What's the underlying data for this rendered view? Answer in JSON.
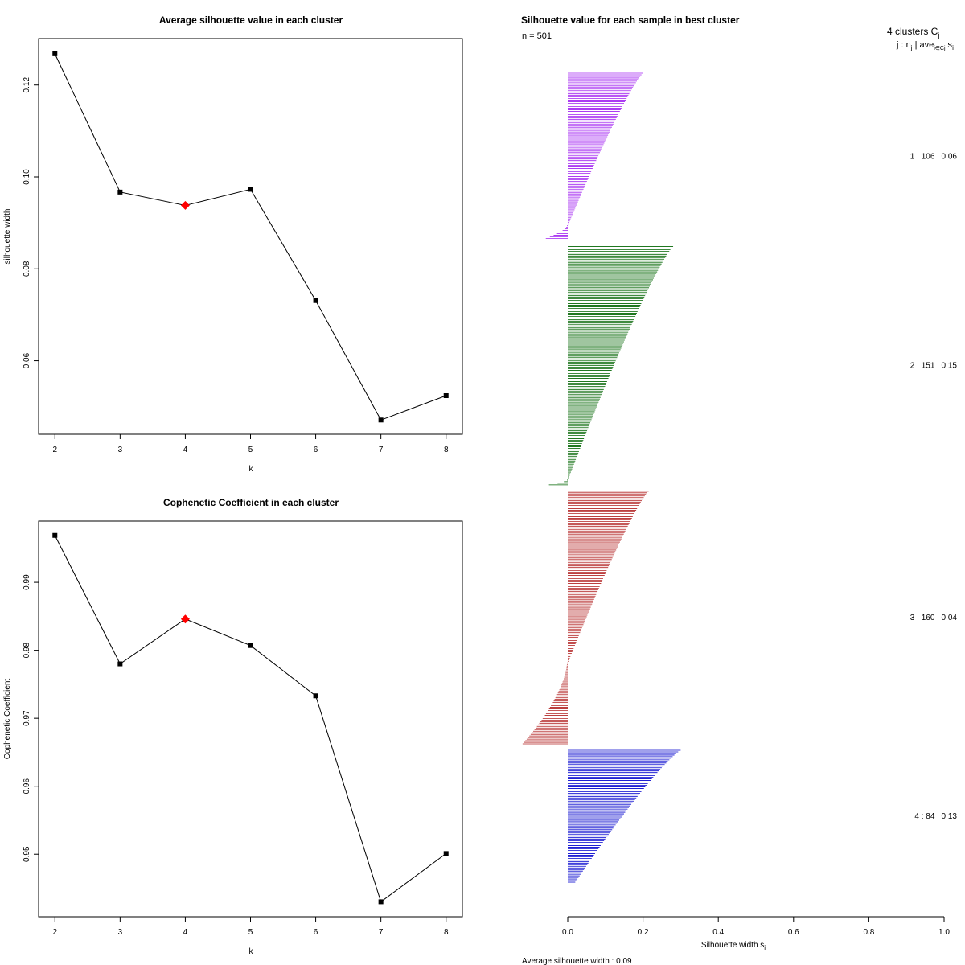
{
  "chart_data": [
    {
      "type": "line",
      "title": "Average silhouette value in each cluster",
      "xlabel": "k",
      "ylabel": "silhouette width",
      "x": [
        2,
        3,
        4,
        5,
        6,
        7,
        8
      ],
      "values": [
        0.1268,
        0.0967,
        0.0938,
        0.0973,
        0.0731,
        0.0471,
        0.0524
      ],
      "highlight_index": 2,
      "highlight_color": "#ff0000",
      "xticks": [
        "2",
        "3",
        "4",
        "5",
        "6",
        "7",
        "8"
      ],
      "yticks": [
        0.06,
        0.08,
        0.1,
        0.12
      ],
      "ytick_labels": [
        "0.06",
        "0.08",
        "0.10",
        "0.12"
      ],
      "xlim": [
        1.75,
        8.25
      ],
      "ylim": [
        0.044,
        0.1301
      ]
    },
    {
      "type": "line",
      "title": "Cophenetic Coefficient in each cluster",
      "xlabel": "k",
      "ylabel": "Cophenetic Coefficient",
      "x": [
        2,
        3,
        4,
        5,
        6,
        7,
        8
      ],
      "values": [
        0.9969,
        0.978,
        0.9846,
        0.9807,
        0.9733,
        0.943,
        0.9501
      ],
      "highlight_index": 2,
      "highlight_color": "#ff0000",
      "xticks": [
        "2",
        "3",
        "4",
        "5",
        "6",
        "7",
        "8"
      ],
      "yticks": [
        0.95,
        0.96,
        0.97,
        0.98,
        0.99
      ],
      "ytick_labels": [
        "0.95",
        "0.96",
        "0.97",
        "0.98",
        "0.99"
      ],
      "xlim": [
        1.75,
        8.25
      ],
      "ylim": [
        0.9408,
        0.999
      ]
    },
    {
      "type": "bar",
      "orientation": "horizontal",
      "title": "Silhouette value for each sample in best cluster",
      "n_label": "n = 501",
      "header_line1": "4  clusters  C",
      "header_line1_sub": "j",
      "header_line2": "j :  n",
      "header_line2_sub": "j",
      "header_line2_rest": " | ave",
      "header_line2_sub2": "i∈Cj",
      "header_line2_end": " s",
      "header_line2_sub3": "i",
      "xlabel": "Silhouette width s",
      "xlabel_sub": "i",
      "xticks": [
        0.0,
        0.2,
        0.4,
        0.6,
        0.8,
        1.0
      ],
      "xtick_labels": [
        "0.0",
        "0.2",
        "0.4",
        "0.6",
        "0.8",
        "1.0"
      ],
      "xlim": [
        0,
        1
      ],
      "footer": "Average silhouette width :  0.09",
      "clusters": [
        {
          "label": "1 :   106  |  0.06",
          "n": 106,
          "avg": 0.06,
          "color": "#a020f0",
          "max": 0.2,
          "neg_count": 10,
          "min": -0.07
        },
        {
          "label": "2 :   151  |  0.15",
          "n": 151,
          "avg": 0.15,
          "color": "#006400",
          "max": 0.28,
          "neg_count": 4,
          "min": -0.05
        },
        {
          "label": "3 :   160  |  0.04",
          "n": 160,
          "avg": 0.04,
          "color": "#b22222",
          "max": 0.215,
          "neg_count": 52,
          "min": -0.12
        },
        {
          "label": "4 :   84  |  0.13",
          "n": 84,
          "avg": 0.13,
          "color": "#0000cd",
          "max": 0.3,
          "neg_count": 0,
          "min": 0.02
        }
      ]
    }
  ]
}
